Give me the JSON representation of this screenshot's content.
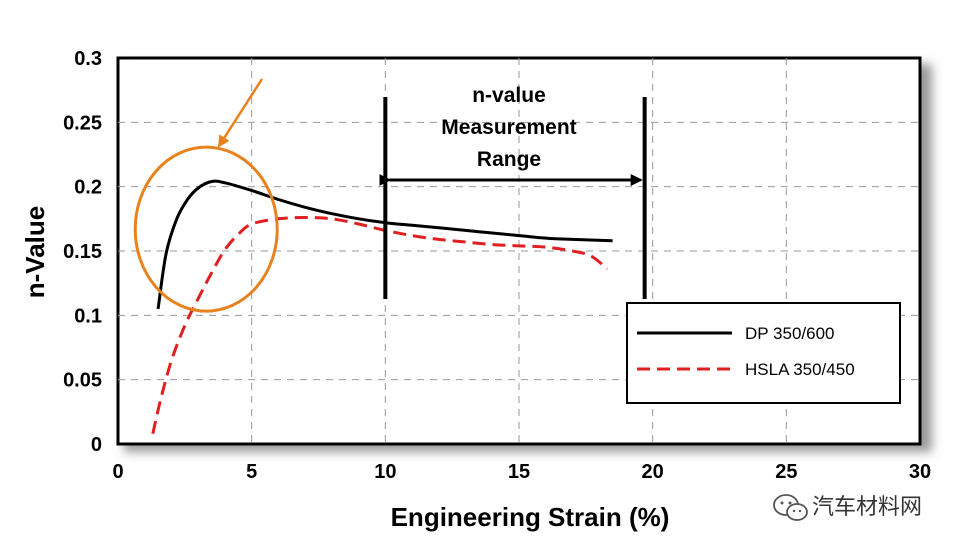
{
  "chart_data": {
    "type": "line",
    "title": "",
    "xlabel": "Engineering Strain (%)",
    "ylabel": "n-Value",
    "xlim": [
      0,
      30
    ],
    "ylim": [
      0,
      0.3
    ],
    "xticks": [
      0,
      5,
      10,
      15,
      20,
      25,
      30
    ],
    "xtick_labels": [
      "0",
      "5",
      "10",
      "15",
      "20",
      "25",
      "30"
    ],
    "yticks": [
      0,
      0.05,
      0.1,
      0.15,
      0.2,
      0.25,
      0.3
    ],
    "ytick_labels": [
      "0",
      "0.05",
      "0.1",
      "0.15",
      "0.2",
      "0.25",
      "0.3"
    ],
    "grid": true,
    "legend_position": "bottom-right",
    "series": [
      {
        "name": "DP 350/600",
        "color": "#000000",
        "style": "solid",
        "x": [
          1.5,
          1.8,
          2.2,
          2.6,
          3.0,
          3.5,
          4.0,
          5.0,
          6.0,
          7.0,
          8.0,
          9.0,
          10.0,
          11.0,
          12.0,
          13.0,
          14.0,
          15.0,
          16.0,
          17.0,
          18.5
        ],
        "y": [
          0.105,
          0.148,
          0.175,
          0.19,
          0.199,
          0.204,
          0.203,
          0.197,
          0.19,
          0.184,
          0.179,
          0.175,
          0.172,
          0.17,
          0.168,
          0.166,
          0.164,
          0.162,
          0.16,
          0.159,
          0.158
        ]
      },
      {
        "name": "HSLA 350/450",
        "color": "#e02020",
        "style": "dashed",
        "x": [
          1.3,
          1.6,
          2.0,
          2.5,
          3.0,
          3.5,
          4.0,
          4.5,
          5.0,
          6.0,
          7.0,
          8.0,
          9.0,
          10.0,
          11.0,
          12.0,
          13.0,
          14.0,
          15.0,
          16.0,
          17.0,
          17.7,
          18.3
        ],
        "y": [
          0.008,
          0.035,
          0.065,
          0.092,
          0.113,
          0.133,
          0.151,
          0.163,
          0.171,
          0.175,
          0.176,
          0.175,
          0.171,
          0.166,
          0.162,
          0.159,
          0.157,
          0.155,
          0.154,
          0.153,
          0.15,
          0.146,
          0.136
        ]
      }
    ],
    "annotations": {
      "measurement_range": {
        "lines": [
          "n-value",
          "Measurement",
          "Range"
        ],
        "x_start": 10,
        "x_end": 19.7
      },
      "highlight_circle": {
        "center_x": 3.3,
        "center_y": 0.167,
        "color": "#e8821e"
      }
    },
    "watermark": "汽车材料网"
  }
}
